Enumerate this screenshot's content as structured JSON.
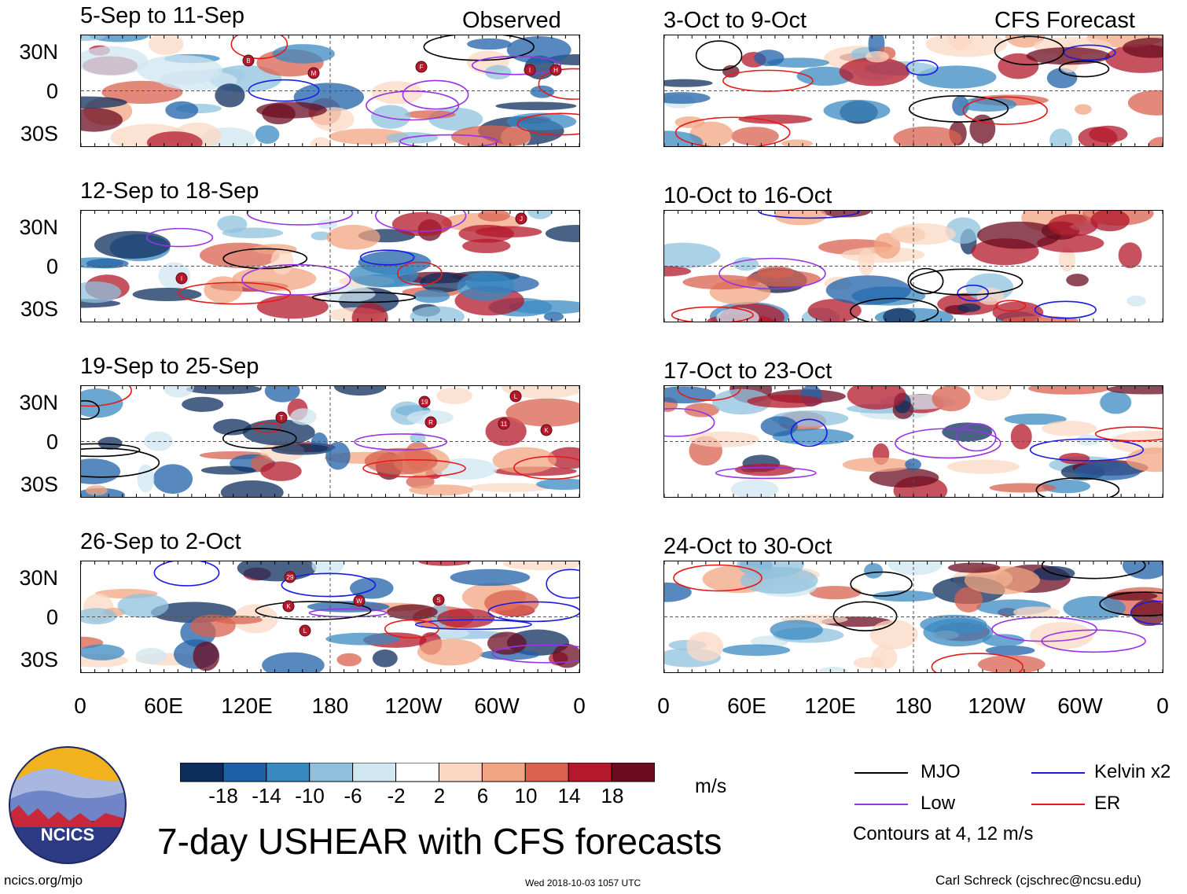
{
  "headers": {
    "observed": "Observed",
    "forecast": "CFS Forecast"
  },
  "observed_panels": [
    {
      "title": "5-Sep to 11-Sep"
    },
    {
      "title": "12-Sep to 18-Sep"
    },
    {
      "title": "19-Sep to 25-Sep"
    },
    {
      "title": "26-Sep to 2-Oct"
    }
  ],
  "forecast_panels": [
    {
      "title": "3-Oct to 9-Oct"
    },
    {
      "title": "10-Oct to 16-Oct"
    },
    {
      "title": "17-Oct to 23-Oct"
    },
    {
      "title": "24-Oct to 30-Oct"
    }
  ],
  "lat_labels": [
    "30N",
    "0",
    "30S"
  ],
  "lon_labels": [
    "0",
    "60E",
    "120E",
    "180",
    "120W",
    "60W",
    "0"
  ],
  "colorbar": {
    "colors": [
      "#0d2e5c",
      "#1f61a8",
      "#3a8ac2",
      "#8fc1dd",
      "#d0e6f1",
      "#ffffff",
      "#fbd8c3",
      "#f2a582",
      "#d9624f",
      "#b3182b",
      "#6b0c20"
    ],
    "labels": [
      "-18",
      "-14",
      "-10",
      "-6",
      "-2",
      "2",
      "6",
      "10",
      "14",
      "18"
    ],
    "units": "m/s"
  },
  "legend": [
    {
      "label": "MJO",
      "color": "#000000"
    },
    {
      "label": "Kelvin x2",
      "color": "#1a1ae6"
    },
    {
      "label": "Low",
      "color": "#9933e6"
    },
    {
      "label": "ER",
      "color": "#e61a1a"
    }
  ],
  "contour_note": "Contours at 4, 12 m/s",
  "logo_text": "NCICS",
  "main_title": "7-day USHEAR with CFS forecasts",
  "footer": {
    "url": "ncics.org/mjo",
    "timestamp": "Wed 2018-10-03 1057 UTC",
    "author": "Carl Schreck (cjschrec@ncsu.edu)"
  },
  "chart_data": {
    "type": "heatmap",
    "variable": "7-day USHEAR",
    "units": "m/s",
    "x_ticks": [
      "0",
      "60E",
      "120E",
      "180",
      "120W",
      "60W",
      "0"
    ],
    "y_ticks": [
      "30N",
      "0",
      "30S"
    ],
    "ylim": [
      "40S",
      "40N"
    ],
    "color_levels": [
      -18,
      -14,
      -10,
      -6,
      -2,
      2,
      6,
      10,
      14,
      18
    ],
    "contour_levels": [
      4,
      12
    ],
    "observed_periods": [
      "5-Sep to 11-Sep",
      "12-Sep to 18-Sep",
      "19-Sep to 25-Sep",
      "26-Sep to 2-Oct"
    ],
    "forecast_periods": [
      "3-Oct to 9-Oct",
      "10-Oct to 16-Oct",
      "17-Oct to 23-Oct",
      "24-Oct to 30-Oct"
    ],
    "storm_markers": [
      [
        "B",
        "M",
        "F",
        "I",
        "H"
      ],
      [
        "I",
        "J"
      ],
      [
        "T",
        "19",
        "R",
        "L",
        "11",
        "K"
      ],
      [
        "29",
        "K",
        "W",
        "S",
        "L"
      ]
    ]
  }
}
